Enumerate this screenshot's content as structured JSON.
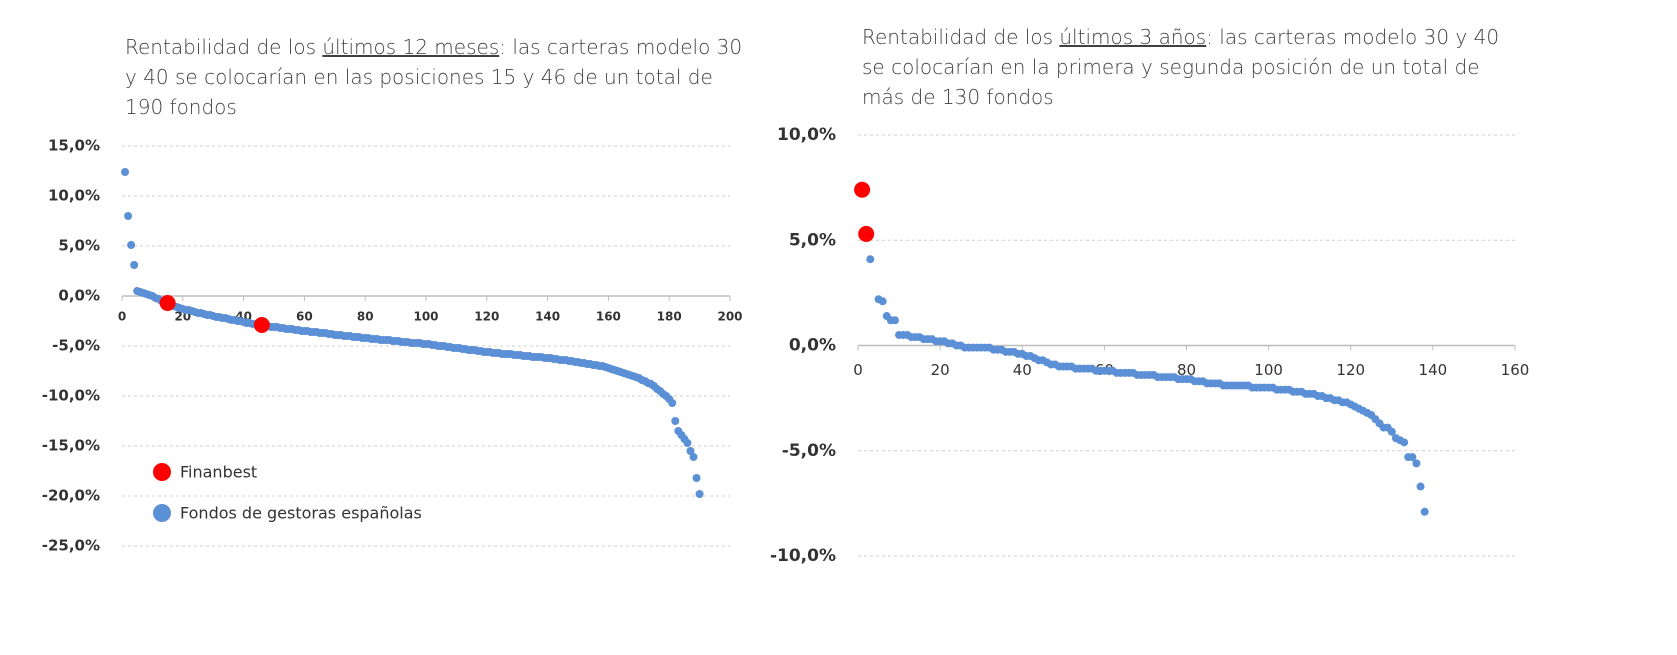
{
  "chart_data": [
    {
      "type": "scatter",
      "title": [
        "Rentabilidad de los ",
        "últimos 12 meses",
        ": las carteras modelo 30 y 40 se colocarían en las posiciones 15 y 46 de un total de 190 fondos"
      ],
      "xlim": [
        0,
        200
      ],
      "xticks": [
        0,
        20,
        40,
        60,
        80,
        100,
        120,
        140,
        160,
        180,
        200
      ],
      "ylim": [
        -25,
        15
      ],
      "yticks": [
        {
          "value": -25,
          "label": "-25,0%"
        },
        {
          "value": -20,
          "label": "-20,0%"
        },
        {
          "value": -15,
          "label": "-15,0%"
        },
        {
          "value": -10,
          "label": "-10,0%"
        },
        {
          "value": -5,
          "label": "-5,0%"
        },
        {
          "value": 0,
          "label": "0,0%"
        },
        {
          "value": 5,
          "label": "5,0%"
        },
        {
          "value": 10,
          "label": "10,0%"
        },
        {
          "value": 15,
          "label": "15,0%"
        }
      ],
      "grid": true,
      "legend": "lower left",
      "series": [
        {
          "name": "Fondos de gestoras españolas",
          "color": "#5b8fd6",
          "x": [
            1,
            2,
            3,
            4,
            5,
            6,
            7,
            8,
            9,
            10,
            11,
            12,
            13,
            14,
            15,
            16,
            17,
            18,
            19,
            20,
            21,
            22,
            23,
            24,
            25,
            26,
            27,
            28,
            29,
            30,
            31,
            32,
            33,
            34,
            35,
            36,
            37,
            38,
            39,
            40,
            41,
            42,
            43,
            44,
            45,
            46,
            47,
            48,
            49,
            50,
            51,
            52,
            53,
            54,
            55,
            56,
            57,
            58,
            59,
            60,
            61,
            62,
            63,
            64,
            65,
            66,
            67,
            68,
            69,
            70,
            71,
            72,
            73,
            74,
            75,
            76,
            77,
            78,
            79,
            80,
            81,
            82,
            83,
            84,
            85,
            86,
            87,
            88,
            89,
            90,
            91,
            92,
            93,
            94,
            95,
            96,
            97,
            98,
            99,
            100,
            101,
            102,
            103,
            104,
            105,
            106,
            107,
            108,
            109,
            110,
            111,
            112,
            113,
            114,
            115,
            116,
            117,
            118,
            119,
            120,
            121,
            122,
            123,
            124,
            125,
            126,
            127,
            128,
            129,
            130,
            131,
            132,
            133,
            134,
            135,
            136,
            137,
            138,
            139,
            140,
            141,
            142,
            143,
            144,
            145,
            146,
            147,
            148,
            149,
            150,
            151,
            152,
            153,
            154,
            155,
            156,
            157,
            158,
            159,
            160,
            161,
            162,
            163,
            164,
            165,
            166,
            167,
            168,
            169,
            170,
            171,
            172,
            173,
            174,
            175,
            176,
            177,
            178,
            179,
            180,
            181,
            182,
            183,
            184,
            185,
            186,
            187,
            188,
            189,
            190
          ],
          "values": [
            12.4,
            8.0,
            5.1,
            3.1,
            0.5,
            0.4,
            0.3,
            0.2,
            0.1,
            0.0,
            -0.2,
            -0.3,
            -0.5,
            -0.6,
            -0.8,
            -0.9,
            -1.0,
            -1.1,
            -1.2,
            -1.3,
            -1.4,
            -1.4,
            -1.5,
            -1.6,
            -1.7,
            -1.7,
            -1.8,
            -1.9,
            -1.9,
            -2.0,
            -2.1,
            -2.1,
            -2.2,
            -2.2,
            -2.3,
            -2.4,
            -2.4,
            -2.5,
            -2.5,
            -2.6,
            -2.7,
            -2.7,
            -2.8,
            -2.8,
            -2.9,
            -2.9,
            -3.0,
            -3.0,
            -3.1,
            -3.1,
            -3.1,
            -3.2,
            -3.2,
            -3.3,
            -3.3,
            -3.3,
            -3.4,
            -3.4,
            -3.5,
            -3.5,
            -3.5,
            -3.6,
            -3.6,
            -3.6,
            -3.7,
            -3.7,
            -3.7,
            -3.8,
            -3.8,
            -3.9,
            -3.9,
            -3.9,
            -4.0,
            -4.0,
            -4.0,
            -4.1,
            -4.1,
            -4.1,
            -4.2,
            -4.2,
            -4.2,
            -4.3,
            -4.3,
            -4.3,
            -4.4,
            -4.4,
            -4.4,
            -4.4,
            -4.5,
            -4.5,
            -4.5,
            -4.6,
            -4.6,
            -4.6,
            -4.7,
            -4.7,
            -4.7,
            -4.7,
            -4.8,
            -4.8,
            -4.8,
            -4.9,
            -4.9,
            -5.0,
            -5.0,
            -5.0,
            -5.1,
            -5.1,
            -5.2,
            -5.2,
            -5.2,
            -5.3,
            -5.3,
            -5.4,
            -5.4,
            -5.4,
            -5.5,
            -5.5,
            -5.6,
            -5.6,
            -5.6,
            -5.7,
            -5.7,
            -5.7,
            -5.8,
            -5.8,
            -5.8,
            -5.8,
            -5.9,
            -5.9,
            -5.9,
            -6.0,
            -6.0,
            -6.0,
            -6.1,
            -6.1,
            -6.1,
            -6.1,
            -6.2,
            -6.2,
            -6.2,
            -6.3,
            -6.3,
            -6.4,
            -6.4,
            -6.4,
            -6.5,
            -6.5,
            -6.6,
            -6.6,
            -6.7,
            -6.7,
            -6.8,
            -6.8,
            -6.9,
            -6.9,
            -7.0,
            -7.0,
            -7.1,
            -7.2,
            -7.3,
            -7.4,
            -7.5,
            -7.6,
            -7.7,
            -7.8,
            -7.9,
            -8.0,
            -8.1,
            -8.2,
            -8.4,
            -8.5,
            -8.7,
            -8.8,
            -9.0,
            -9.3,
            -9.5,
            -9.8,
            -10.0,
            -10.3,
            -10.7,
            -12.5,
            -13.5,
            -13.9,
            -14.3,
            -14.7,
            -15.5,
            -16.1,
            -18.2,
            -19.8
          ]
        },
        {
          "name": "Finanbest",
          "color": "#ff0000",
          "x": [
            15,
            46
          ],
          "values": [
            -0.7,
            -2.9
          ]
        }
      ]
    },
    {
      "type": "scatter",
      "title": [
        "Rentabilidad de los ",
        "últimos 3 años",
        ": las carteras modelo 30 y 40 se colocarían en la primera y segunda posición de un total de más de 130 fondos"
      ],
      "xlim": [
        0,
        160
      ],
      "xticks": [
        0,
        20,
        40,
        60,
        80,
        100,
        120,
        140,
        160
      ],
      "ylim": [
        -10,
        10
      ],
      "yticks": [
        {
          "value": -10,
          "label": "-10,0%"
        },
        {
          "value": -5,
          "label": "-5,0%"
        },
        {
          "value": 0,
          "label": "0,0%"
        },
        {
          "value": 5,
          "label": "5,0%"
        },
        {
          "value": 10,
          "label": "10,0%"
        }
      ],
      "grid": true,
      "series": [
        {
          "color": "#5b8fd6",
          "x": [
            3,
            5,
            6,
            7,
            8,
            9,
            10,
            11,
            12,
            13,
            14,
            15,
            16,
            17,
            18,
            19,
            20,
            21,
            22,
            23,
            24,
            25,
            26,
            27,
            28,
            29,
            30,
            31,
            32,
            33,
            34,
            35,
            36,
            37,
            38,
            39,
            40,
            41,
            42,
            43,
            44,
            45,
            46,
            47,
            48,
            49,
            50,
            51,
            52,
            53,
            54,
            55,
            56,
            57,
            58,
            59,
            60,
            61,
            62,
            63,
            64,
            65,
            66,
            67,
            68,
            69,
            70,
            71,
            72,
            73,
            74,
            75,
            76,
            77,
            78,
            79,
            80,
            81,
            82,
            83,
            84,
            85,
            86,
            87,
            88,
            89,
            90,
            91,
            92,
            93,
            94,
            95,
            96,
            97,
            98,
            99,
            100,
            101,
            102,
            103,
            104,
            105,
            106,
            107,
            108,
            109,
            110,
            111,
            112,
            113,
            114,
            115,
            116,
            117,
            118,
            119,
            120,
            121,
            122,
            123,
            124,
            125,
            126,
            127,
            128,
            129,
            130,
            131,
            132,
            133,
            134,
            135,
            136,
            137,
            138
          ],
          "values": [
            4.1,
            2.2,
            2.1,
            1.4,
            1.2,
            1.2,
            0.5,
            0.5,
            0.5,
            0.4,
            0.4,
            0.4,
            0.3,
            0.3,
            0.3,
            0.2,
            0.2,
            0.2,
            0.1,
            0.1,
            0.0,
            0.0,
            -0.1,
            -0.1,
            -0.1,
            -0.1,
            -0.1,
            -0.1,
            -0.1,
            -0.2,
            -0.2,
            -0.2,
            -0.3,
            -0.3,
            -0.3,
            -0.4,
            -0.4,
            -0.5,
            -0.5,
            -0.6,
            -0.7,
            -0.7,
            -0.8,
            -0.9,
            -0.9,
            -1.0,
            -1.0,
            -1.0,
            -1.0,
            -1.1,
            -1.1,
            -1.1,
            -1.1,
            -1.1,
            -1.2,
            -1.2,
            -1.2,
            -1.2,
            -1.2,
            -1.3,
            -1.3,
            -1.3,
            -1.3,
            -1.3,
            -1.4,
            -1.4,
            -1.4,
            -1.4,
            -1.4,
            -1.5,
            -1.5,
            -1.5,
            -1.5,
            -1.5,
            -1.6,
            -1.6,
            -1.6,
            -1.6,
            -1.7,
            -1.7,
            -1.7,
            -1.8,
            -1.8,
            -1.8,
            -1.8,
            -1.9,
            -1.9,
            -1.9,
            -1.9,
            -1.9,
            -1.9,
            -1.9,
            -2.0,
            -2.0,
            -2.0,
            -2.0,
            -2.0,
            -2.0,
            -2.1,
            -2.1,
            -2.1,
            -2.1,
            -2.2,
            -2.2,
            -2.2,
            -2.3,
            -2.3,
            -2.3,
            -2.4,
            -2.4,
            -2.5,
            -2.5,
            -2.6,
            -2.6,
            -2.7,
            -2.7,
            -2.8,
            -2.9,
            -3.0,
            -3.1,
            -3.2,
            -3.3,
            -3.5,
            -3.7,
            -3.9,
            -3.9,
            -4.1,
            -4.4,
            -4.5,
            -4.6,
            -5.3,
            -5.3,
            -5.6,
            -6.7,
            -7.9
          ]
        },
        {
          "color": "#ff0000",
          "x": [
            1,
            2
          ],
          "values": [
            7.4,
            5.3
          ]
        }
      ]
    }
  ]
}
